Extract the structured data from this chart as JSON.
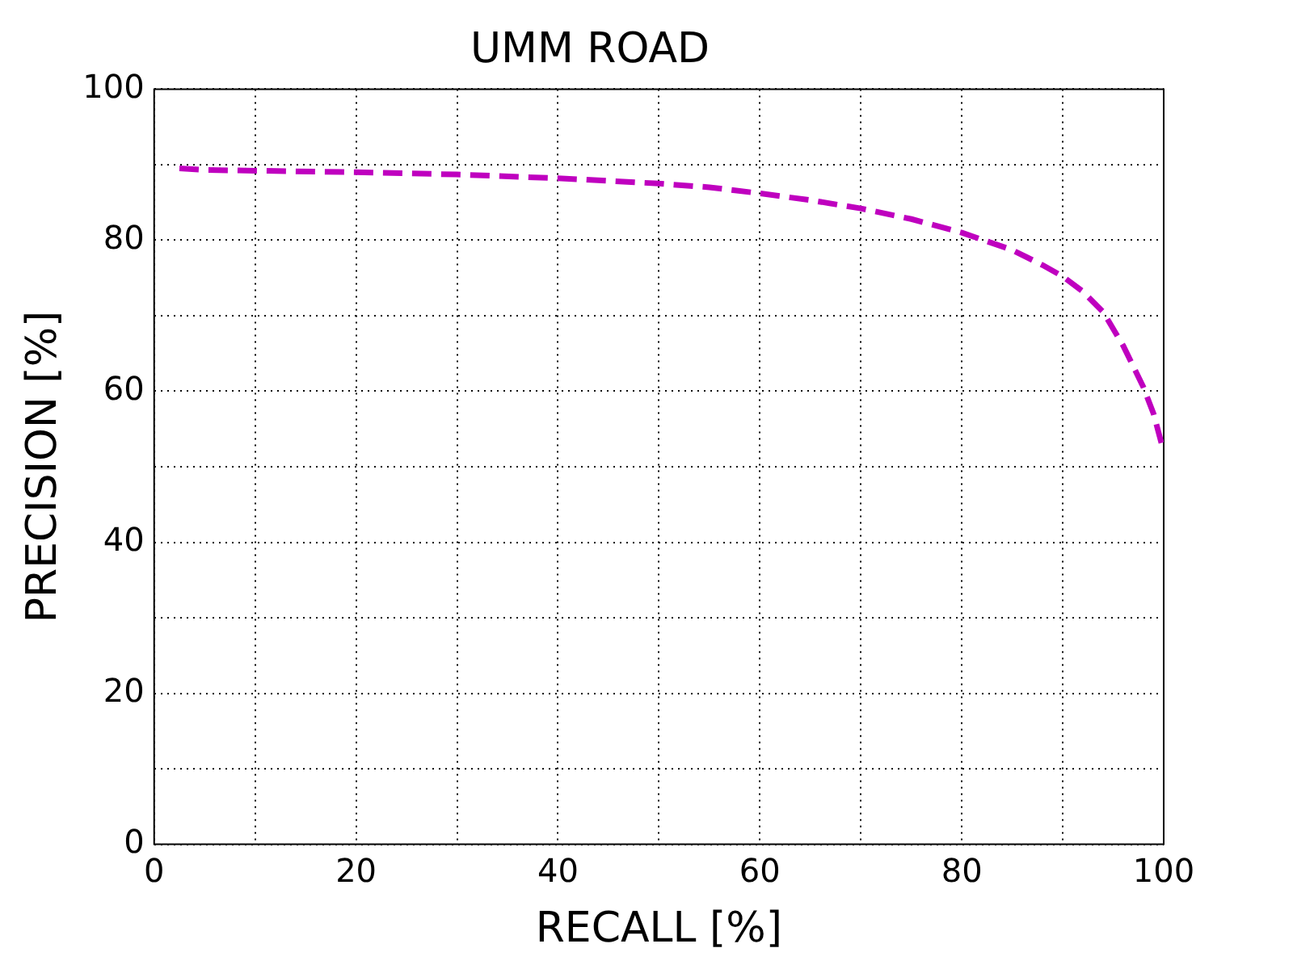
{
  "chart_data": {
    "type": "line",
    "title": "UMM ROAD",
    "xlabel": "RECALL [%]",
    "ylabel": "PRECISION [%]",
    "xlim": [
      0,
      100
    ],
    "ylim": [
      0,
      100
    ],
    "xticks": [
      0,
      {
        "value": 10,
        "label": null
      },
      20,
      {
        "value": 30,
        "label": null
      },
      40,
      {
        "value": 50,
        "label": null
      },
      60,
      {
        "value": 70,
        "label": null
      },
      80,
      {
        "value": 90,
        "label": null
      },
      100
    ],
    "yticks": [
      0,
      {
        "value": 10,
        "label": null
      },
      20,
      {
        "value": 30,
        "label": null
      },
      40,
      {
        "value": 50,
        "label": null
      },
      60,
      {
        "value": 70,
        "label": null
      },
      80,
      {
        "value": 90,
        "label": null
      },
      100
    ],
    "grid": true,
    "legend": false,
    "line_style": "dashed",
    "marker": "none",
    "series": [
      {
        "color": "#bf00bf",
        "x": [
          2.5,
          5,
          10,
          20,
          30,
          40,
          50,
          55,
          60,
          65,
          70,
          75,
          80,
          85,
          88,
          90,
          92,
          94,
          96,
          98,
          99,
          100
        ],
        "values": [
          89.5,
          89.3,
          89.2,
          89,
          88.7,
          88.2,
          87.5,
          87,
          86.2,
          85.3,
          84.2,
          82.8,
          81,
          78.7,
          76.7,
          75.2,
          73.2,
          70.5,
          66,
          60.5,
          57,
          52
        ]
      }
    ]
  }
}
